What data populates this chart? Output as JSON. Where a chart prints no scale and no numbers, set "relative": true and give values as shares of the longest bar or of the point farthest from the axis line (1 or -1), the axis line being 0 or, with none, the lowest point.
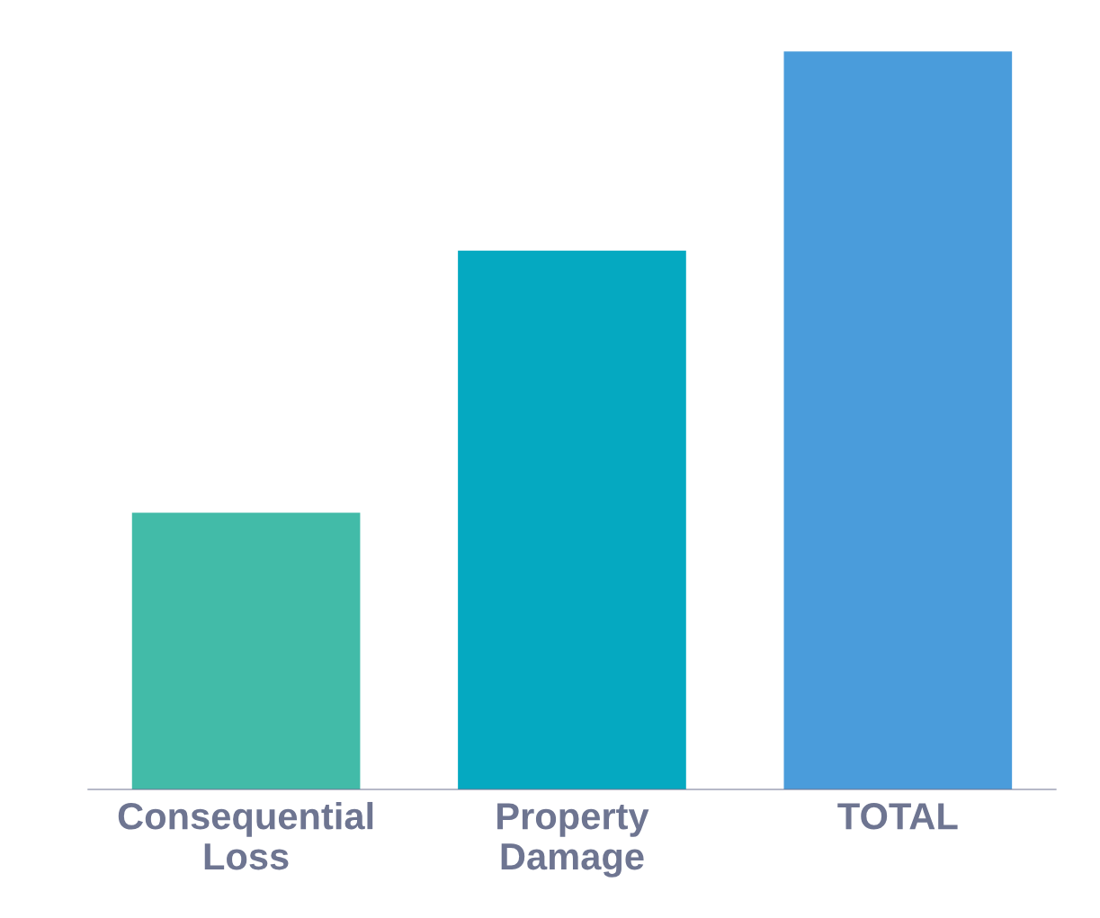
{
  "chart_data": {
    "type": "bar",
    "relative": true,
    "categories": [
      "Consequential Loss",
      "Property Damage",
      "TOTAL"
    ],
    "values": [
      0.375,
      0.73,
      1
    ],
    "colors": [
      "#42bba8",
      "#05a9c1",
      "#4a9cdb"
    ]
  }
}
